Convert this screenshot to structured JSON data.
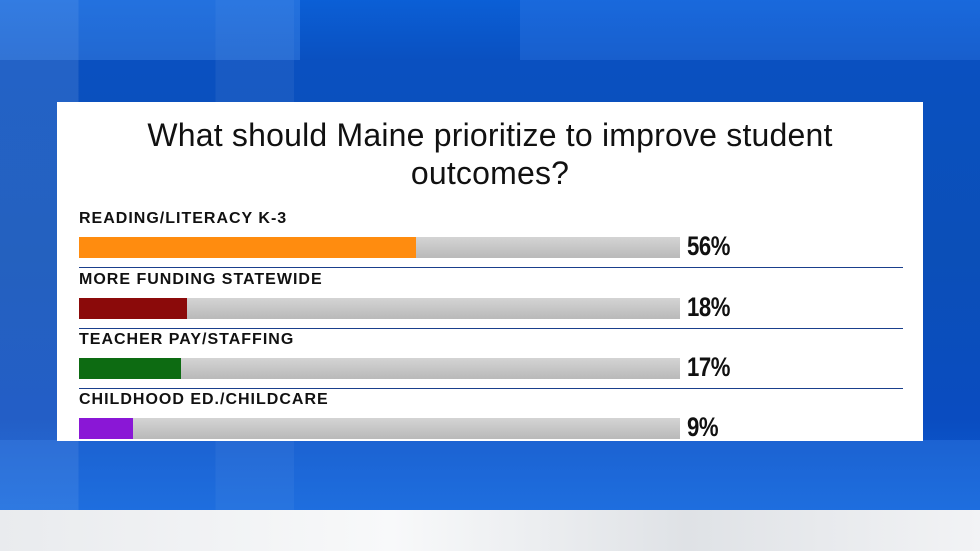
{
  "chart_data": {
    "type": "bar",
    "title": "What should Maine prioritize to improve student outcomes?",
    "title_lines": [
      "What should Maine prioritize to improve student",
      "outcomes?"
    ],
    "categories": [
      "READING/LITERACY K-3",
      "MORE FUNDING STATEWIDE",
      "TEACHER PAY/STAFFING",
      "CHILDHOOD ED./CHILDCARE"
    ],
    "values": [
      56,
      18,
      17,
      9
    ],
    "value_labels": [
      "56%",
      "18%",
      "17%",
      "9%"
    ],
    "colors": [
      "#ff8c0f",
      "#8b0a0a",
      "#0d6b12",
      "#8a17d6"
    ],
    "orientation": "horizontal",
    "xlim": [
      0,
      100
    ],
    "grid": false,
    "legend": "none"
  },
  "background": {
    "color": "#0a55c8",
    "panel_color": "#ffffff",
    "track_color": "#c4c4c4",
    "divider_color": "#1a3f8c"
  }
}
